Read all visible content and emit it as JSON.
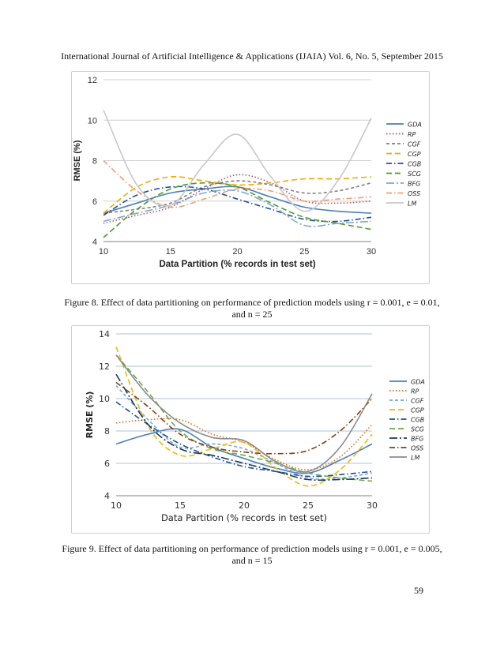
{
  "header": {
    "text": "International Journal of Artificial Intelligence & Applications (IJAIA) Vol. 6, No. 5, September 2015"
  },
  "captions": [
    "Figure 8. Effect of data partitioning on performance of prediction models using r = 0.001, e = 0.01, and n = 25",
    "Figure 9. Effect of data partitioning on performance of prediction models using r = 0.001, e = 0.005, and n = 15"
  ],
  "page_number": "59",
  "chart_data": [
    {
      "type": "line",
      "title": "",
      "xlabel": "Data Partition (% records in test set)",
      "ylabel": "RMSE (%)",
      "x": [
        10,
        12.5,
        15,
        17.5,
        20,
        22.5,
        25,
        27.5,
        30
      ],
      "xlim": [
        10,
        30
      ],
      "ylim": [
        4,
        12
      ],
      "xticks": [
        "10",
        "15",
        "20",
        "25",
        "30"
      ],
      "yticks": [
        "4",
        "6",
        "8",
        "10",
        "12"
      ],
      "grid": "horizontal",
      "legend_position": "right",
      "series": [
        {
          "name": "GDA",
          "color": "#4a7ebb",
          "dash": "solid",
          "values": [
            5.4,
            5.9,
            6.4,
            6.6,
            6.7,
            6.2,
            5.7,
            5.5,
            5.4
          ]
        },
        {
          "name": "RP",
          "color": "#c0504d",
          "dash": "dotted",
          "values": [
            4.9,
            5.3,
            5.7,
            6.6,
            7.3,
            6.9,
            6.0,
            5.9,
            6.0
          ]
        },
        {
          "name": "CGF",
          "color": "#7f7f7f",
          "dash": "dashed",
          "values": [
            5.4,
            5.6,
            5.9,
            6.7,
            7.0,
            6.8,
            6.4,
            6.5,
            6.9
          ]
        },
        {
          "name": "CGP",
          "color": "#f5a800",
          "dash": "longdash",
          "values": [
            5.4,
            6.7,
            7.2,
            7.0,
            6.8,
            6.9,
            7.1,
            7.1,
            7.2
          ]
        },
        {
          "name": "CGB",
          "color": "#1f4e9b",
          "dash": "dashdot",
          "values": [
            5.3,
            6.3,
            6.7,
            6.6,
            6.1,
            5.6,
            5.1,
            5.0,
            5.2
          ]
        },
        {
          "name": "SCG",
          "color": "#4e9a2a",
          "dash": "longdash",
          "values": [
            4.2,
            5.6,
            6.6,
            6.9,
            6.7,
            5.9,
            5.2,
            4.9,
            4.6
          ]
        },
        {
          "name": "BFG",
          "color": "#7aa6d8",
          "dash": "longdashdot",
          "values": [
            5.0,
            5.4,
            5.8,
            6.4,
            6.5,
            5.8,
            4.8,
            4.9,
            5.0
          ]
        },
        {
          "name": "OSS",
          "color": "#f0a070",
          "dash": "dashdot",
          "values": [
            8.0,
            6.5,
            5.7,
            6.1,
            6.6,
            6.5,
            6.0,
            6.1,
            6.2
          ]
        },
        {
          "name": "LM",
          "color": "#c8c8c8",
          "dash": "solid",
          "values": [
            10.5,
            6.8,
            5.8,
            7.8,
            9.3,
            7.2,
            5.5,
            7.0,
            10.1
          ]
        }
      ]
    },
    {
      "type": "line",
      "title": "",
      "xlabel": "Data Partition (% records in test set)",
      "ylabel": "RMSE (%)",
      "x": [
        10,
        12.5,
        15,
        17.5,
        20,
        22.5,
        25,
        27.5,
        30
      ],
      "xlim": [
        10,
        30
      ],
      "ylim": [
        4,
        14
      ],
      "xticks": [
        "10",
        "15",
        "20",
        "25",
        "30"
      ],
      "yticks": [
        "4",
        "6",
        "8",
        "10",
        "12",
        "14"
      ],
      "grid": "horizontal",
      "legend_position": "right",
      "series": [
        {
          "name": "GDA",
          "color": "#4a7ebb",
          "dash": "solid",
          "values": [
            7.2,
            7.8,
            8.1,
            7.0,
            6.3,
            5.7,
            5.4,
            6.2,
            7.2
          ]
        },
        {
          "name": "RP",
          "color": "#e46c0a",
          "dash": "dotted",
          "values": [
            8.5,
            8.7,
            8.7,
            7.8,
            7.3,
            6.2,
            5.6,
            6.4,
            8.4
          ]
        },
        {
          "name": "CGF",
          "color": "#7aa6d8",
          "dash": "dashed",
          "values": [
            10.8,
            8.7,
            7.0,
            7.2,
            6.9,
            6.0,
            5.1,
            5.1,
            5.4
          ]
        },
        {
          "name": "CGP",
          "color": "#f5b800",
          "dash": "longdash",
          "values": [
            13.2,
            8.3,
            6.5,
            6.9,
            7.3,
            5.7,
            4.6,
            5.6,
            7.8
          ]
        },
        {
          "name": "CGB",
          "color": "#1f4e9b",
          "dash": "dashdot",
          "values": [
            9.8,
            8.4,
            7.2,
            6.4,
            5.8,
            5.5,
            5.2,
            5.3,
            5.5
          ]
        },
        {
          "name": "SCG",
          "color": "#6aa84f",
          "dash": "longdash",
          "values": [
            12.7,
            10.4,
            8.0,
            6.9,
            6.5,
            6.0,
            5.4,
            5.1,
            4.9
          ]
        },
        {
          "name": "BFG",
          "color": "#17375e",
          "dash": "longdashdot",
          "values": [
            11.5,
            8.4,
            6.9,
            6.5,
            6.0,
            5.5,
            5.0,
            5.0,
            5.1
          ]
        },
        {
          "name": "OSS",
          "color": "#8b3a0e",
          "dash": "dashdot",
          "values": [
            11.0,
            9.5,
            7.8,
            7.0,
            6.7,
            6.6,
            6.8,
            8.0,
            10.0
          ]
        },
        {
          "name": "LM",
          "color": "#8c8c8c",
          "dash": "solid",
          "values": [
            12.7,
            10.2,
            8.5,
            7.6,
            7.4,
            6.1,
            5.5,
            7.0,
            10.3
          ]
        }
      ]
    }
  ]
}
